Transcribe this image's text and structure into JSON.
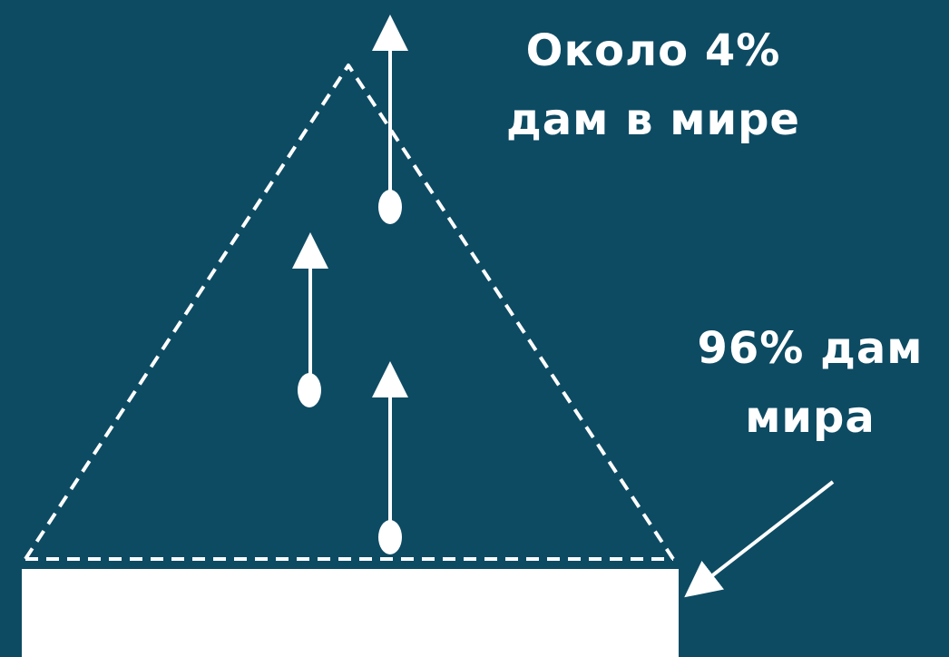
{
  "labels": {
    "top_line1": "Около 4%",
    "top_line2": "дам в мире",
    "right_line1": "96% дам",
    "right_line2": "мира"
  },
  "colors": {
    "background": "#0d4b63",
    "foreground": "#ffffff"
  }
}
